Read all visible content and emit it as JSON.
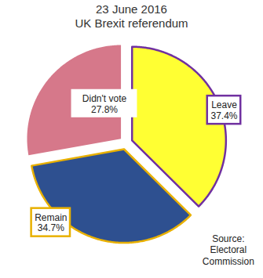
{
  "chart_data": {
    "type": "pie",
    "title": "23 June 2016",
    "subtitle": "UK Brexit referendum",
    "categories": [
      "Leave",
      "Remain",
      "Didn't vote"
    ],
    "values": [
      37.4,
      34.7,
      27.8
    ],
    "value_labels": [
      "37.4%",
      "34.7%",
      "27.8%"
    ],
    "colors": [
      "#ffff33",
      "#2e5090",
      "#d6788a"
    ],
    "data_labels": true,
    "source": "Source: Electoral Commission"
  }
}
